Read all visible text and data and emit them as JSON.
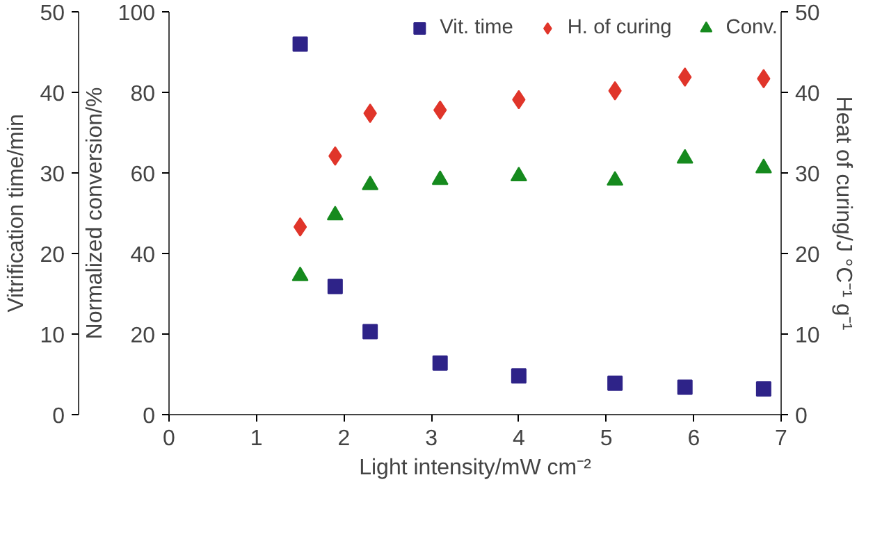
{
  "chart_data": {
    "type": "scatter",
    "xlabel": "Light intensity/mW cm⁻²",
    "ylabel": "Normalized conversion/%",
    "y2label": "Heat of curing/J °C⁻¹ g⁻¹",
    "y3label": "Vitrification time/min",
    "x": [
      1.5,
      1.9,
      2.3,
      3.1,
      4.0,
      5.1,
      5.9,
      6.8
    ],
    "xlim": [
      0,
      7
    ],
    "xticks": [
      0,
      1,
      2,
      3,
      4,
      5,
      6,
      7
    ],
    "ylim": [
      0,
      100
    ],
    "yticks": [
      0,
      20,
      40,
      60,
      80,
      100
    ],
    "y2lim": [
      0,
      50
    ],
    "y2ticks": [
      0,
      10,
      20,
      30,
      40,
      50
    ],
    "y3lim": [
      0,
      50
    ],
    "y3ticks": [
      0,
      10,
      20,
      30,
      40,
      50
    ],
    "legend": "top",
    "grid": false,
    "series": [
      {
        "name": "Vit. time",
        "color": "#2e2388",
        "marker": "square",
        "axis": "y3",
        "values": [
          46.0,
          15.9,
          10.3,
          6.4,
          4.8,
          3.9,
          3.4,
          3.2
        ]
      },
      {
        "name": "H. of curing",
        "color": "#e0352a",
        "marker": "diamond",
        "axis": "y2",
        "values": [
          23.3,
          32.1,
          37.4,
          37.8,
          39.1,
          40.2,
          41.9,
          41.7
        ]
      },
      {
        "name": "Conv.",
        "color": "#168a1e",
        "marker": "triangle",
        "axis": "y",
        "values": [
          34.4,
          49.5,
          57.0,
          58.3,
          59.2,
          58.1,
          63.6,
          61.2
        ]
      }
    ]
  }
}
